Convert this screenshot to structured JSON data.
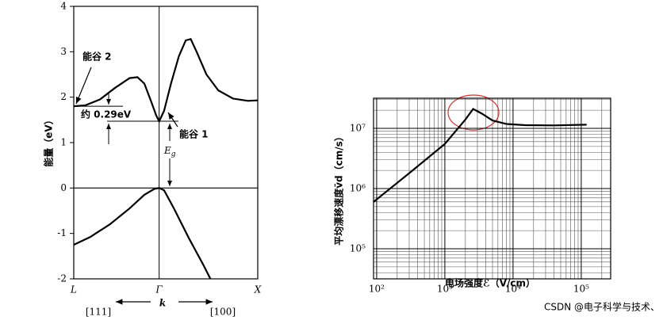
{
  "chart_data": [
    {
      "type": "line",
      "y_label": "能量（eV）",
      "x_label": "k",
      "direction_labels": [
        "[111]",
        "[100]"
      ],
      "annotations": [
        "能谷 2",
        "约 0.29eV",
        "能谷 1"
      ],
      "gap_label": "E",
      "gap_label_sub": "g",
      "xlim": [
        -0.866,
        1
      ],
      "xticks": [
        {
          "value": -0.866,
          "label": "L"
        },
        {
          "value": 0,
          "label": "Γ"
        },
        {
          "value": 1,
          "label": "X"
        }
      ],
      "ylim": [
        -2,
        4
      ],
      "yticks": [
        -2,
        -1,
        0,
        1,
        2,
        3,
        4
      ],
      "series": [
        {
          "color": "#000000",
          "x": [
            -0.866,
            -0.75,
            -0.6,
            -0.45,
            -0.3,
            -0.22,
            -0.15,
            -0.08,
            -0.03,
            0,
            0.05,
            0.12,
            0.2,
            0.27,
            0.32,
            0.38,
            0.48,
            0.6,
            0.75,
            0.9,
            1
          ],
          "values": [
            1.8,
            1.82,
            1.95,
            2.2,
            2.42,
            2.44,
            2.3,
            1.9,
            1.6,
            1.47,
            1.7,
            2.3,
            2.9,
            3.25,
            3.28,
            3.0,
            2.5,
            2.15,
            1.97,
            1.92,
            1.93
          ]
        },
        {
          "color": "#000000",
          "x": [
            -0.866,
            -0.7,
            -0.5,
            -0.3,
            -0.15,
            -0.05,
            0,
            0.05,
            0.15,
            0.3,
            0.45,
            0.52
          ],
          "values": [
            -1.25,
            -1.08,
            -0.8,
            -0.45,
            -0.15,
            -0.02,
            0,
            -0.05,
            -0.45,
            -1.1,
            -1.7,
            -2
          ]
        }
      ]
    },
    {
      "type": "line",
      "log_x": true,
      "log_y": true,
      "grid": true,
      "minor_grid": true,
      "x_label": "电场强度ℰ（V/cm）",
      "y_label": "平均漂移速度v̄d（cm/s）",
      "xlim": [
        90,
        270000
      ],
      "xticks": [
        {
          "value": 100,
          "label": "10²"
        },
        {
          "value": 1000,
          "label": "10³"
        },
        {
          "value": 10000,
          "label": "10⁴"
        },
        {
          "value": 100000,
          "label": "10⁵"
        }
      ],
      "ylim": [
        31623,
        31622777
      ],
      "yticks": [
        {
          "value": 100000,
          "label": "10⁵"
        },
        {
          "value": 1000000,
          "label": "10⁶"
        },
        {
          "value": 10000000,
          "label": "10⁷"
        }
      ],
      "series": [
        {
          "color": "#000000",
          "x": [
            90,
            300,
            1000,
            2000,
            2600,
            3500,
            5000,
            8000,
            15000,
            40000,
            120000
          ],
          "values": [
            600000,
            1800000,
            5500000,
            14000000,
            21000000,
            17500000,
            13500000,
            11800000,
            11300000,
            11200000,
            11500000
          ]
        }
      ]
    }
  ],
  "watermark": "CSDN @电子科学与技术、"
}
